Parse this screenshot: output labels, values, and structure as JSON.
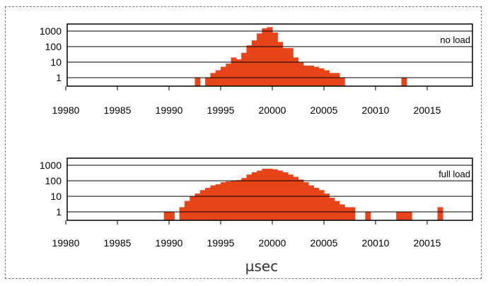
{
  "chart_data": [
    {
      "type": "bar",
      "annotation": "no load",
      "x_ticks": [
        "19980",
        "19985",
        "19990",
        "19995",
        "20000",
        "20005",
        "20010",
        "20015"
      ],
      "y_ticks": [
        "1000",
        "100",
        "10",
        "1"
      ],
      "yscale": "log",
      "ylim": [
        0.5,
        3000
      ],
      "xlim": [
        19980,
        20019
      ],
      "bin_width": 0.5,
      "x": [
        19992.5,
        19993.5,
        19994,
        19994.5,
        19995,
        19995.5,
        19996,
        19996.5,
        19997,
        19997.5,
        19998,
        19998.5,
        19999,
        19999.5,
        20000,
        20000.5,
        20001,
        20001.5,
        20002,
        20002.5,
        20003,
        20003.5,
        20004,
        20004.5,
        20005,
        20005.5,
        20006,
        20006.5,
        20012.5
      ],
      "values": [
        1,
        1,
        2,
        3,
        5,
        8,
        20,
        15,
        40,
        120,
        250,
        700,
        1500,
        1800,
        800,
        200,
        80,
        80,
        20,
        10,
        6,
        6,
        5,
        4,
        3,
        2,
        2,
        1,
        1
      ],
      "color": "#e8441a"
    },
    {
      "type": "bar",
      "annotation": "full load",
      "x_ticks": [
        "19980",
        "19985",
        "19990",
        "19995",
        "20000",
        "20005",
        "20010",
        "20015"
      ],
      "y_ticks": [
        "1000",
        "100",
        "10",
        "1"
      ],
      "yscale": "log",
      "ylim": [
        0.5,
        3000
      ],
      "xlim": [
        19980,
        20019
      ],
      "bin_width": 0.5,
      "x": [
        19989.5,
        19990,
        19991,
        19991.5,
        19992,
        19992.5,
        19993,
        19993.5,
        19994,
        19994.5,
        19995,
        19995.5,
        19996,
        19996.5,
        19997,
        19997.5,
        19998,
        19998.5,
        19999,
        19999.5,
        20000,
        20000.5,
        20001,
        20001.5,
        20002,
        20002.5,
        20003,
        20003.5,
        20004,
        20004.5,
        20005,
        20005.5,
        20006,
        20006.5,
        20007,
        20007.5,
        20009,
        20012,
        20012.5,
        20013,
        20016
      ],
      "values": [
        1,
        1,
        2,
        5,
        10,
        15,
        25,
        35,
        50,
        60,
        80,
        90,
        100,
        110,
        150,
        250,
        350,
        450,
        600,
        600,
        550,
        450,
        350,
        250,
        180,
        120,
        80,
        50,
        35,
        25,
        15,
        8,
        5,
        3,
        2,
        2,
        1,
        1,
        1,
        1,
        2
      ],
      "color": "#e8441a"
    }
  ],
  "xlabel": "µsec"
}
